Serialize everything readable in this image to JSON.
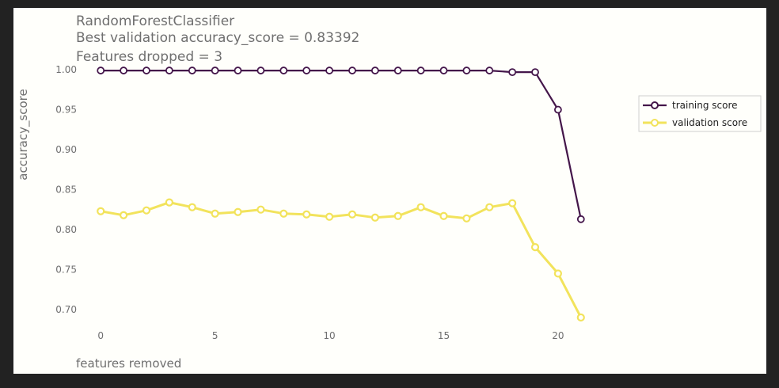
{
  "chart_data": {
    "type": "line",
    "title": [
      "RandomForestClassifier",
      "Best validation accuracy_score = 0.83392",
      "Features dropped = 3"
    ],
    "xlabel": "features removed",
    "ylabel": "accuracy_score",
    "xlim": [
      -0.7,
      21.7
    ],
    "ylim": [
      0.684,
      1.008
    ],
    "xticks": [
      0,
      5,
      10,
      15,
      20
    ],
    "xtick_labels": [
      "0",
      "5",
      "10",
      "15",
      "20"
    ],
    "yticks": [
      0.7,
      0.75,
      0.8,
      0.85,
      0.9,
      0.95,
      1.0
    ],
    "ytick_labels": [
      "0.70",
      "0.75",
      "0.80",
      "0.85",
      "0.90",
      "0.95",
      "1.00"
    ],
    "grid": false,
    "legend_position": "right",
    "x": [
      0,
      1,
      2,
      3,
      4,
      5,
      6,
      7,
      8,
      9,
      10,
      11,
      12,
      13,
      14,
      15,
      16,
      17,
      18,
      19,
      20,
      21
    ],
    "series": [
      {
        "name": "training score",
        "color": "#44164a",
        "values": [
          0.999,
          0.999,
          0.999,
          0.999,
          0.999,
          0.999,
          0.999,
          0.999,
          0.999,
          0.999,
          0.999,
          0.999,
          0.999,
          0.999,
          0.999,
          0.999,
          0.999,
          0.999,
          0.997,
          0.997,
          0.95,
          0.813
        ]
      },
      {
        "name": "validation score",
        "color": "#f2e35c",
        "values": [
          0.823,
          0.818,
          0.824,
          0.834,
          0.828,
          0.82,
          0.822,
          0.825,
          0.82,
          0.819,
          0.816,
          0.819,
          0.815,
          0.817,
          0.828,
          0.817,
          0.814,
          0.828,
          0.833,
          0.778,
          0.745,
          0.69
        ]
      }
    ]
  }
}
